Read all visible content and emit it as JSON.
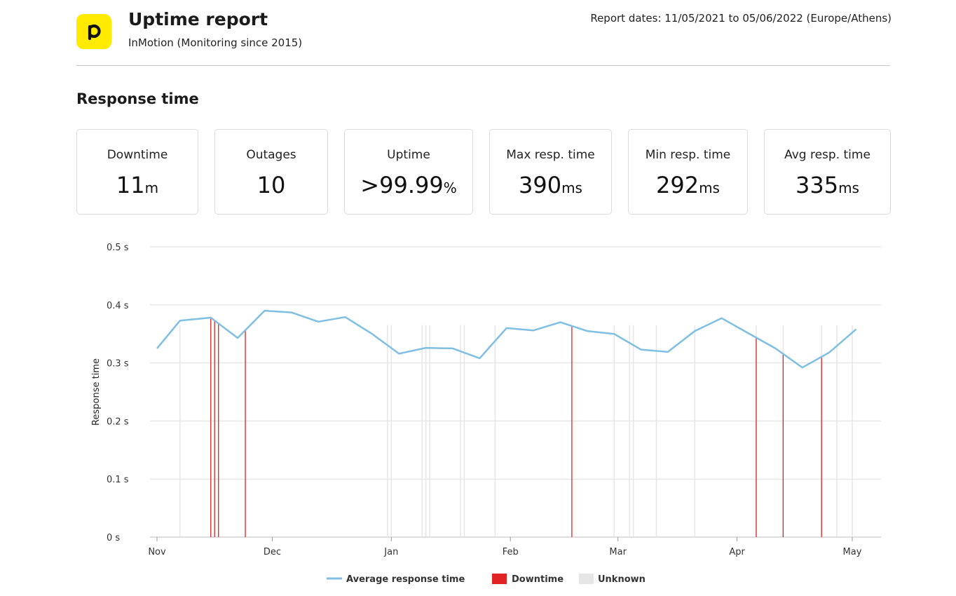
{
  "header": {
    "logo_letter": "p",
    "title": "Uptime report",
    "subtitle": "InMotion (Monitoring since 2015)",
    "report_dates": "Report dates: 11/05/2021 to 05/06/2022 (Europe/Athens)",
    "brand_color": "#ffea00"
  },
  "section_title": "Response time",
  "stats": [
    {
      "label": "Downtime",
      "value": "11",
      "unit": "m"
    },
    {
      "label": "Outages",
      "value": "10",
      "unit": ""
    },
    {
      "label": "Uptime",
      "value": ">99.99",
      "unit": "%"
    },
    {
      "label": "Max resp. time",
      "value": "390",
      "unit": "ms"
    },
    {
      "label": "Min resp. time",
      "value": "292",
      "unit": "ms"
    },
    {
      "label": "Avg resp. time",
      "value": "335",
      "unit": "ms"
    }
  ],
  "chart_data": {
    "type": "line",
    "ylabel": "Response time",
    "ylim": [
      0,
      0.5
    ],
    "y_ticks": [
      0,
      0.1,
      0.2,
      0.3,
      0.4,
      0.5
    ],
    "y_tick_labels": [
      "0 s",
      "0.1 s",
      "0.2 s",
      "0.3 s",
      "0.4 s",
      "0.5 s"
    ],
    "x_range": [
      "2021-11-01",
      "2022-05-08"
    ],
    "x_ticks": [
      "2021-11-01",
      "2021-12-01",
      "2022-01-01",
      "2022-02-01",
      "2022-03-01",
      "2022-04-01",
      "2022-05-01"
    ],
    "x_tick_labels": [
      "Nov",
      "Dec",
      "Jan",
      "Feb",
      "Mar",
      "Apr",
      "May"
    ],
    "grid": true,
    "legend": "bottom",
    "series": [
      {
        "name": "Average response time",
        "color": "#7fbfe3",
        "points": [
          {
            "x": "2021-11-01",
            "y": 0.325
          },
          {
            "x": "2021-11-07",
            "y": 0.373
          },
          {
            "x": "2021-11-15",
            "y": 0.378
          },
          {
            "x": "2021-11-22",
            "y": 0.343
          },
          {
            "x": "2021-11-29",
            "y": 0.39
          },
          {
            "x": "2021-12-06",
            "y": 0.387
          },
          {
            "x": "2021-12-13",
            "y": 0.371
          },
          {
            "x": "2021-12-20",
            "y": 0.379
          },
          {
            "x": "2021-12-27",
            "y": 0.35
          },
          {
            "x": "2022-01-03",
            "y": 0.316
          },
          {
            "x": "2022-01-10",
            "y": 0.326
          },
          {
            "x": "2022-01-17",
            "y": 0.325
          },
          {
            "x": "2022-01-24",
            "y": 0.308
          },
          {
            "x": "2022-01-31",
            "y": 0.36
          },
          {
            "x": "2022-02-07",
            "y": 0.356
          },
          {
            "x": "2022-02-14",
            "y": 0.37
          },
          {
            "x": "2022-02-21",
            "y": 0.355
          },
          {
            "x": "2022-02-28",
            "y": 0.35
          },
          {
            "x": "2022-03-07",
            "y": 0.323
          },
          {
            "x": "2022-03-14",
            "y": 0.319
          },
          {
            "x": "2022-03-21",
            "y": 0.355
          },
          {
            "x": "2022-03-28",
            "y": 0.377
          },
          {
            "x": "2022-04-04",
            "y": 0.351
          },
          {
            "x": "2022-04-11",
            "y": 0.325
          },
          {
            "x": "2022-04-18",
            "y": 0.292
          },
          {
            "x": "2022-04-25",
            "y": 0.318
          },
          {
            "x": "2022-05-02",
            "y": 0.358
          }
        ]
      },
      {
        "name": "Downtime",
        "color": "#e02424",
        "dates": [
          "2021-11-15",
          "2021-11-16",
          "2021-11-17",
          "2021-11-24",
          "2022-02-17",
          "2022-04-06",
          "2022-04-13",
          "2022-04-23"
        ]
      },
      {
        "name": "Unknown",
        "color": "#e6e6e6",
        "dates": [
          "2021-11-07",
          "2021-11-17",
          "2021-12-31",
          "2022-01-01",
          "2022-01-09",
          "2022-01-10",
          "2022-01-11",
          "2022-01-19",
          "2022-01-20",
          "2022-01-28",
          "2022-02-28",
          "2022-03-04",
          "2022-03-05",
          "2022-03-11",
          "2022-03-21",
          "2022-04-06",
          "2022-04-13",
          "2022-04-23",
          "2022-04-27",
          "2022-05-01"
        ]
      }
    ]
  }
}
